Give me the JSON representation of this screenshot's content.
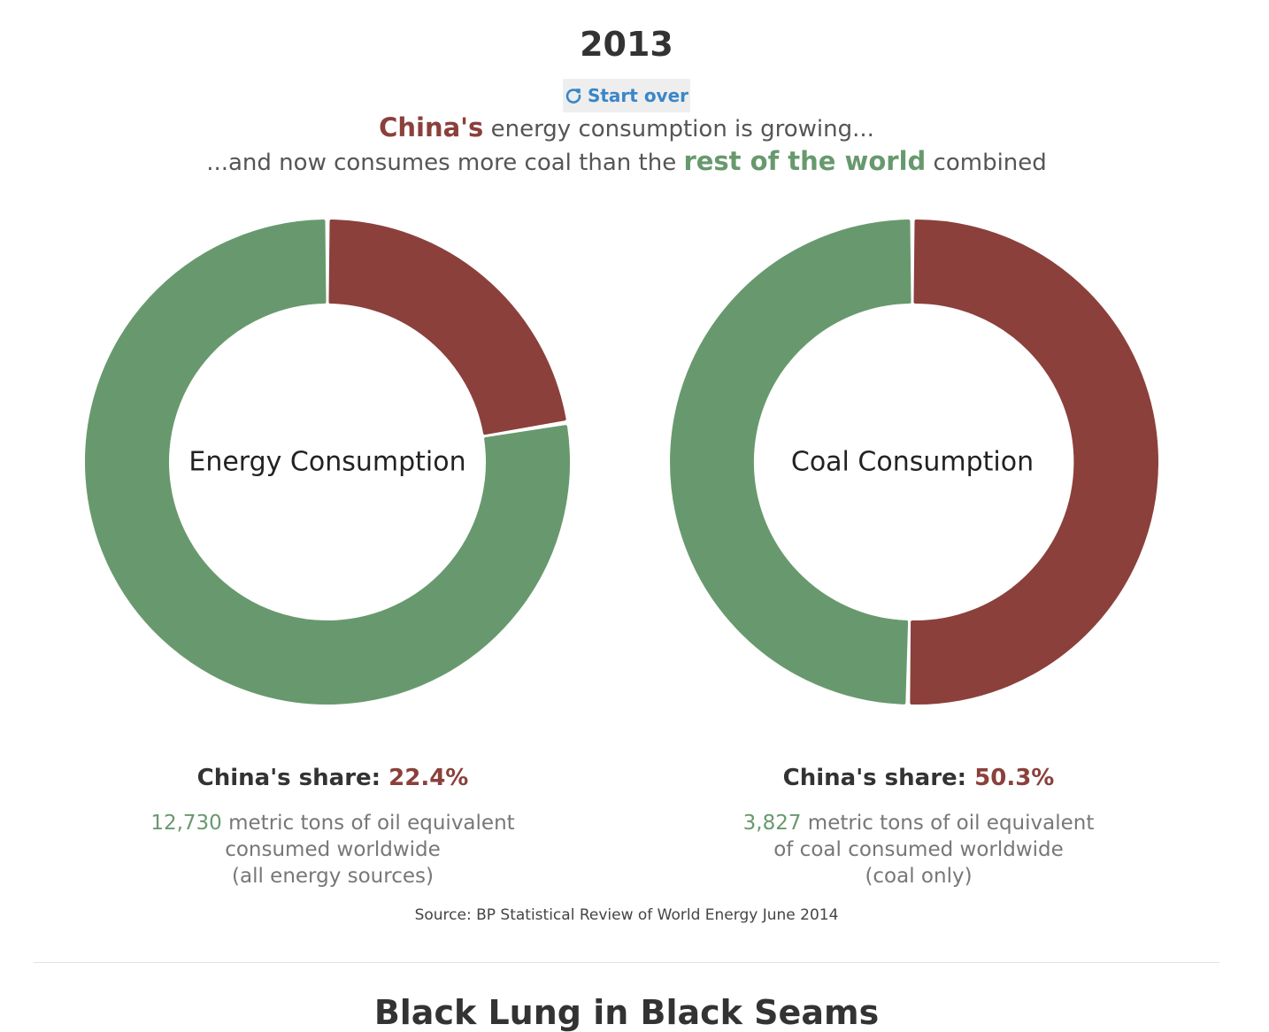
{
  "header": {
    "year": "2013",
    "start_over_label": "Start over",
    "start_over_icon": "refresh-icon"
  },
  "subtitle": {
    "line1_highlight": "China's",
    "line1_rest": " energy consumption is growing...",
    "line2_start": "...and now consumes more coal than the ",
    "line2_highlight": "rest of the world",
    "line2_end": " combined"
  },
  "colors": {
    "china": "#8b403b",
    "rest_of_world": "#68996e",
    "button_text": "#3a86c8"
  },
  "chart_data": [
    {
      "type": "pie",
      "title": "Energy Consumption",
      "share_label": "China's share:",
      "share_value_text": "22.4%",
      "slices": [
        {
          "label": "China",
          "value": 22.4,
          "color": "#8b403b"
        },
        {
          "label": "Rest of world",
          "value": 77.6,
          "color": "#68996e"
        }
      ],
      "note": {
        "total": "12,730",
        "line1_rest": " metric tons of oil equivalent",
        "line2": "consumed worldwide",
        "line3": "(all energy sources)"
      }
    },
    {
      "type": "pie",
      "title": "Coal Consumption",
      "share_label": "China's share:",
      "share_value_text": "50.3%",
      "slices": [
        {
          "label": "China",
          "value": 50.3,
          "color": "#8b403b"
        },
        {
          "label": "Rest of world",
          "value": 49.7,
          "color": "#68996e"
        }
      ],
      "note": {
        "total": "3,827",
        "line1_rest": " metric tons of oil equivalent",
        "line2": "of coal consumed worldwide",
        "line3": "(coal only)"
      }
    }
  ],
  "source": "Source: BP Statistical Review of World Energy June 2014",
  "next_section": {
    "heading": "Black Lung in Black Seams"
  }
}
